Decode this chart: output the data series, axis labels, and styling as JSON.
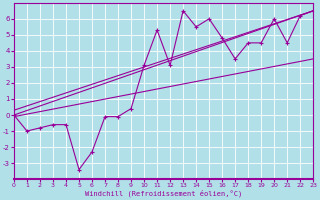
{
  "xlabel": "Windchill (Refroidissement éolien,°C)",
  "bg_color": "#b2e0e8",
  "line_color": "#990099",
  "grid_color": "#ffffff",
  "xlim": [
    0,
    23
  ],
  "ylim": [
    -4,
    7
  ],
  "xticks": [
    0,
    1,
    2,
    3,
    4,
    5,
    6,
    7,
    8,
    9,
    10,
    11,
    12,
    13,
    14,
    15,
    16,
    17,
    18,
    19,
    20,
    21,
    22,
    23
  ],
  "yticks": [
    -3,
    -2,
    -1,
    0,
    1,
    2,
    3,
    4,
    5,
    6
  ],
  "series1_x": [
    0,
    1,
    2,
    3,
    4,
    5,
    6,
    7,
    8,
    9,
    10,
    11,
    12,
    13,
    14,
    15,
    16,
    17,
    18,
    19,
    20,
    21,
    22,
    23
  ],
  "series1_y": [
    0,
    -1,
    -0.8,
    -0.6,
    -0.6,
    -3.4,
    -2.3,
    -0.1,
    -0.1,
    0.4,
    3.1,
    5.3,
    3.1,
    6.5,
    5.5,
    6.0,
    4.8,
    3.5,
    4.5,
    4.5,
    6.0,
    4.5,
    6.2,
    6.5
  ],
  "line1_x": [
    0,
    23
  ],
  "line1_y": [
    0.0,
    6.5
  ],
  "line2_x": [
    0,
    23
  ],
  "line2_y": [
    0.3,
    6.5
  ],
  "line3_x": [
    0,
    23
  ],
  "line3_y": [
    -0.1,
    3.5
  ]
}
